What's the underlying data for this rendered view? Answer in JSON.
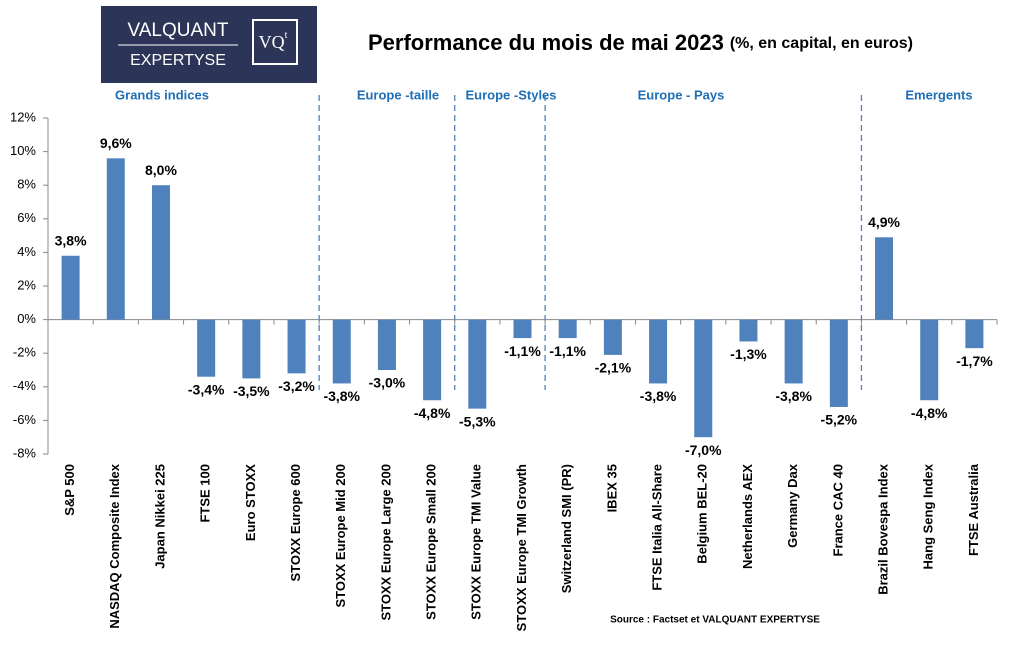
{
  "logo": {
    "line1": "VALQUANT",
    "line2": "EXPERTYSE",
    "mark": "VQ",
    "mark_sup": "t"
  },
  "chart_data": {
    "type": "bar",
    "title": "Performance du mois de mai 2023",
    "subtitle": "(%, en capital, en euros)",
    "groups": [
      "Grands indices",
      "Europe -taille",
      "Europe -Styles",
      "Europe - Pays",
      "Emergents"
    ],
    "categories": [
      "S&P 500",
      "NASDAQ Composite Index",
      "Japan Nikkei 225",
      "FTSE 100",
      "Euro STOXX",
      "STOXX Europe 600",
      "STOXX Europe Mid 200",
      "STOXX Europe Large 200",
      "STOXX Europe Small 200",
      "STOXX Europe TMI Value",
      "STOXX Europe TMI Growth",
      "Switzerland SMI (PR)",
      "IBEX 35",
      "FTSE Italia All-Share",
      "Belgium BEL-20",
      "Netherlands AEX",
      "Germany Dax",
      "France CAC 40",
      "Brazil Bovespa Index",
      "Hang Seng Index",
      "FTSE Australia"
    ],
    "values": [
      3.8,
      9.6,
      8.0,
      -3.4,
      -3.5,
      -3.2,
      -3.8,
      -3.0,
      -4.8,
      -5.3,
      -1.1,
      -1.1,
      -2.1,
      -3.8,
      -7.0,
      -1.3,
      -3.8,
      -5.2,
      4.9,
      -4.8,
      -1.7
    ],
    "value_labels": [
      "3,8%",
      "9,6%",
      "8,0%",
      "-3,4%",
      "-3,5%",
      "-3,2%",
      "-3,8%",
      "-3,0%",
      "-4,8%",
      "-5,3%",
      "-1,1%",
      "-1,1%",
      "-2,1%",
      "-3,8%",
      "-7,0%",
      "-1,3%",
      "-3,8%",
      "-5,2%",
      "4,9%",
      "-4,8%",
      "-1,7%"
    ],
    "color": "#4f81bd",
    "ylim": [
      -8,
      12
    ],
    "yticks": [
      {
        "value": -8,
        "label": "-8%"
      },
      {
        "value": -6,
        "label": "-6%"
      },
      {
        "value": -4,
        "label": "-4%"
      },
      {
        "value": -2,
        "label": "-2%"
      },
      {
        "value": 0,
        "label": "0%"
      },
      {
        "value": 2,
        "label": "2%"
      },
      {
        "value": 4,
        "label": "4%"
      },
      {
        "value": 6,
        "label": "6%"
      },
      {
        "value": 8,
        "label": "8%"
      },
      {
        "value": 10,
        "label": "10%"
      },
      {
        "value": 12,
        "label": "12%"
      }
    ],
    "source": "Source :  Factset et VALQUANT  EXPERTYSE"
  }
}
